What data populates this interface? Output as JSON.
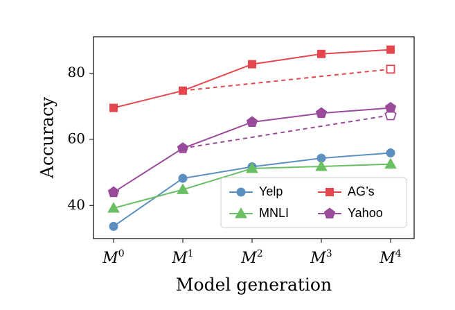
{
  "chart_data": {
    "type": "line",
    "xlabel": "Model generation",
    "ylabel": "Accuracy",
    "ylim": [
      30,
      91
    ],
    "yticks": [
      40,
      60,
      80
    ],
    "categories": [
      {
        "base": "M",
        "sup": "0"
      },
      {
        "base": "M",
        "sup": "1"
      },
      {
        "base": "M",
        "sup": "2"
      },
      {
        "base": "M",
        "sup": "3"
      },
      {
        "base": "M",
        "sup": "4"
      }
    ],
    "series": [
      {
        "name": "Yelp",
        "color": "#5b8fc0",
        "marker": "circle",
        "values": [
          33.7,
          48.2,
          51.7,
          54.3,
          55.9
        ]
      },
      {
        "name": "MNLI",
        "color": "#6abf64",
        "marker": "triangle",
        "values": [
          39.2,
          44.8,
          51.2,
          51.8,
          52.5
        ]
      },
      {
        "name": "AG’s",
        "color": "#e5464d",
        "marker": "square",
        "values": [
          69.5,
          74.7,
          82.7,
          85.8,
          87.1
        ]
      },
      {
        "name": "Yahoo",
        "color": "#9a4a9a",
        "marker": "pentagon",
        "values": [
          44.0,
          57.3,
          65.2,
          67.9,
          69.5
        ]
      }
    ],
    "dashed_projections": [
      {
        "series": "AG’s",
        "from": [
          1,
          74.7
        ],
        "to": [
          4,
          81.2
        ]
      },
      {
        "series": "Yahoo",
        "from": [
          1,
          57.3
        ],
        "to": [
          4,
          67.3
        ]
      }
    ],
    "legend": {
      "placement": "lower-right",
      "columns": 2,
      "order": [
        "Yelp",
        "AG’s",
        "MNLI",
        "Yahoo"
      ]
    },
    "grid": false
  }
}
